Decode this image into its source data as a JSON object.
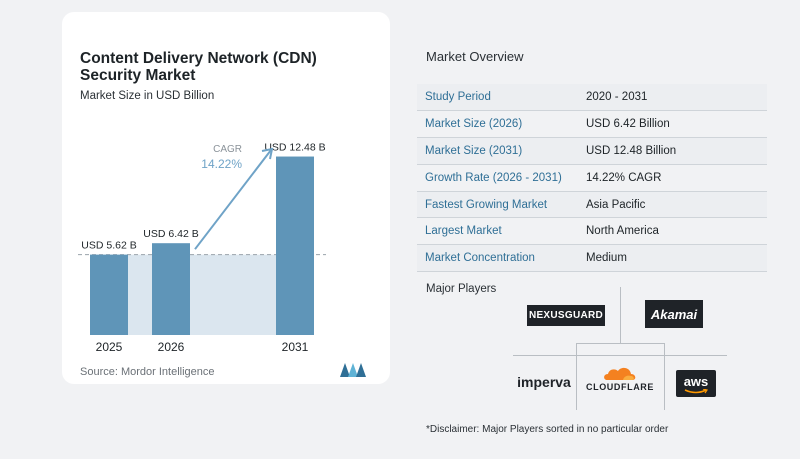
{
  "card": {
    "title": "Content Delivery Network (CDN) Security Market",
    "subtitle": "Market Size in USD Billion",
    "source": "Source:  Mordor Intelligence"
  },
  "chart_data": {
    "type": "bar",
    "categories": [
      "2025",
      "2026",
      "2031"
    ],
    "values": [
      5.62,
      6.42,
      12.48
    ],
    "value_labels": [
      "USD 5.62 B",
      "USD 6.42 B",
      "USD 12.48 B"
    ],
    "cagr_label": "CAGR",
    "cagr_value": "14.22%",
    "colors": {
      "bar": "#5f95b8",
      "bar_light": "#9ec2d9",
      "highlight": "#dbe6ef",
      "arrow": "#6fa3c7",
      "dash": "#9aa3ab"
    }
  },
  "overview": {
    "title": "Market Overview",
    "rows": [
      {
        "key": "Study Period",
        "value": "2020 - 2031"
      },
      {
        "key": "Market Size (2026)",
        "value": "USD 6.42 Billion"
      },
      {
        "key": "Market Size (2031)",
        "value": "USD 12.48 Billion"
      },
      {
        "key": "Growth Rate (2026 - 2031)",
        "value": "14.22% CAGR"
      },
      {
        "key": "Fastest Growing Market",
        "value": "Asia Pacific"
      },
      {
        "key": "Largest Market",
        "value": "North America"
      },
      {
        "key": "Market Concentration",
        "value": "Medium"
      }
    ]
  },
  "players": {
    "title": "Major Players",
    "nexusguard": "NEXUSGUARD",
    "akamai": "Akamai",
    "imperva": "imperva",
    "cloudflare": "CLOUDFLARE",
    "aws": "aws"
  },
  "disclaimer": "*Disclaimer: Major Players sorted in no particular order"
}
